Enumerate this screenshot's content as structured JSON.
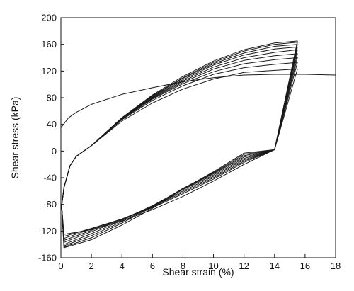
{
  "chart_data": {
    "type": "line",
    "title": "",
    "xlabel": "Shear strain (%)",
    "ylabel": "Shear stress (kPa)",
    "xlim": [
      0,
      18
    ],
    "ylim": [
      -160,
      200
    ],
    "xticks": [
      0,
      2,
      4,
      6,
      8,
      10,
      12,
      14,
      16,
      18
    ],
    "yticks": [
      -160,
      -120,
      -80,
      -40,
      0,
      40,
      80,
      120,
      160,
      200
    ],
    "grid": false,
    "legend": "none",
    "color": "#1a1a1a",
    "series": [
      {
        "x": [
          0,
          0.5,
          1,
          2,
          4,
          6,
          8,
          10,
          12,
          14,
          16,
          18
        ],
        "y": [
          35,
          50,
          58,
          70,
          85,
          95,
          104,
          110,
          114,
          115,
          115,
          114
        ]
      },
      {
        "x": [
          1.5,
          2,
          4,
          6,
          8,
          10,
          12,
          14,
          15.5,
          14,
          12,
          10,
          8,
          6,
          4,
          2,
          0.2,
          0.05,
          0.2,
          0.6,
          1.0,
          1.5
        ],
        "y": [
          0,
          8,
          45,
          72,
          93,
          108,
          118,
          121,
          123,
          2,
          -20,
          -45,
          -68,
          -88,
          -105,
          -118,
          -125,
          -82,
          -55,
          -22,
          -8,
          0
        ]
      },
      {
        "x": [
          1.5,
          2,
          4,
          6,
          8,
          10,
          12,
          14,
          15.5,
          14,
          12,
          10,
          8,
          6,
          4,
          2,
          0.2,
          0.05,
          0.2,
          0.6,
          1.0,
          1.5
        ],
        "y": [
          0,
          8,
          47,
          76,
          98,
          115,
          125,
          130,
          133,
          2,
          -17,
          -42,
          -64,
          -85,
          -102,
          -116,
          -128,
          -82,
          -55,
          -22,
          -8,
          0
        ]
      },
      {
        "x": [
          1.5,
          2,
          4,
          6,
          8,
          10,
          12,
          14,
          15.5,
          14,
          12,
          10,
          8,
          6,
          4,
          2,
          0.2,
          0.05,
          0.2,
          0.6,
          1.0,
          1.5
        ],
        "y": [
          0,
          8,
          48,
          78,
          101,
          119,
          131,
          137,
          140,
          2,
          -15,
          -40,
          -62,
          -84,
          -102,
          -117,
          -131,
          -82,
          -55,
          -22,
          -8,
          0
        ]
      },
      {
        "x": [
          1.5,
          2,
          4,
          6,
          8,
          10,
          12,
          14,
          15.5,
          14,
          12,
          10,
          8,
          6,
          4,
          2,
          0.2,
          0.05,
          0.2,
          0.6,
          1.0,
          1.5
        ],
        "y": [
          0,
          8,
          48,
          79,
          103,
          123,
          136,
          143,
          146,
          2,
          -13,
          -38,
          -60,
          -83,
          -102,
          -119,
          -134,
          -82,
          -55,
          -22,
          -8,
          0
        ]
      },
      {
        "x": [
          1.5,
          2,
          4,
          6,
          8,
          10,
          12,
          14,
          15.5,
          14,
          12,
          10,
          8,
          6,
          4,
          2,
          0.2,
          0.05,
          0.2,
          0.6,
          1.0,
          1.5
        ],
        "y": [
          0,
          8,
          49,
          80,
          105,
          126,
          140,
          148,
          152,
          2,
          -11,
          -36,
          -58,
          -82,
          -103,
          -121,
          -137,
          -82,
          -55,
          -22,
          -8,
          0
        ]
      },
      {
        "x": [
          1.5,
          2,
          4,
          6,
          8,
          10,
          12,
          14,
          15.5,
          14,
          12,
          10,
          8,
          6,
          4,
          2,
          0.2,
          0.05,
          0.2,
          0.6,
          1.0,
          1.5
        ],
        "y": [
          0,
          8,
          49,
          81,
          107,
          129,
          144,
          153,
          156,
          2,
          -9,
          -34,
          -57,
          -82,
          -104,
          -124,
          -140,
          -82,
          -55,
          -22,
          -8,
          0
        ]
      },
      {
        "x": [
          1.5,
          2,
          4,
          6,
          8,
          10,
          12,
          14,
          15.5,
          14,
          12,
          10,
          8,
          6,
          4,
          2,
          0.2,
          0.05,
          0.2,
          0.6,
          1.0,
          1.5
        ],
        "y": [
          0,
          8,
          50,
          82,
          109,
          131,
          147,
          157,
          160,
          2,
          -7,
          -33,
          -56,
          -83,
          -106,
          -127,
          -142,
          -82,
          -55,
          -22,
          -8,
          0
        ]
      },
      {
        "x": [
          1.5,
          2,
          4,
          6,
          8,
          10,
          12,
          14,
          15.5,
          14,
          12,
          10,
          8,
          6,
          4,
          2,
          0.2,
          0.05,
          0.2,
          0.6,
          1.0,
          1.5
        ],
        "y": [
          0,
          8,
          50,
          83,
          110,
          133,
          150,
          160,
          163,
          2,
          -5,
          -32,
          -56,
          -84,
          -108,
          -130,
          -144,
          -82,
          -55,
          -22,
          -8,
          0
        ]
      },
      {
        "x": [
          1.5,
          2,
          4,
          6,
          8,
          10,
          12,
          14,
          15.5,
          14,
          12,
          10,
          8,
          6,
          4,
          2,
          0.2,
          0.05,
          0.2,
          0.6,
          1.0,
          1.5
        ],
        "y": [
          0,
          8,
          50,
          84,
          112,
          135,
          152,
          162,
          165,
          2,
          -3,
          -31,
          -57,
          -86,
          -111,
          -133,
          -145,
          -82,
          -55,
          -22,
          -8,
          0
        ]
      }
    ]
  }
}
